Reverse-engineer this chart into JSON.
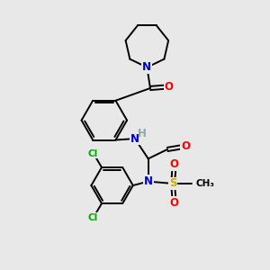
{
  "bg_color": "#e8e8e8",
  "atom_colors": {
    "C": "#000000",
    "N": "#0000cc",
    "O": "#ff0000",
    "S": "#ccaa00",
    "Cl": "#00aa00",
    "H": "#88aaaa"
  },
  "bond_color": "#000000",
  "bond_width": 1.4,
  "font_size_atom": 8.5,
  "font_size_small": 7.5,
  "xlim": [
    0,
    10
  ],
  "ylim": [
    0,
    10
  ]
}
